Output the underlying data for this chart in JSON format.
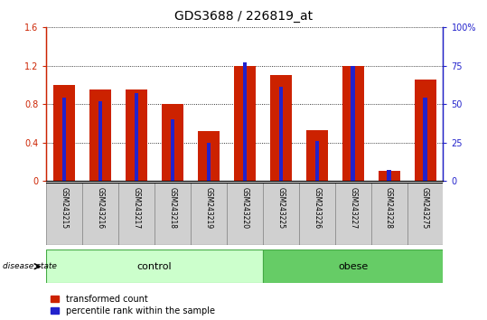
{
  "title": "GDS3688 / 226819_at",
  "samples": [
    "GSM243215",
    "GSM243216",
    "GSM243217",
    "GSM243218",
    "GSM243219",
    "GSM243220",
    "GSM243225",
    "GSM243226",
    "GSM243227",
    "GSM243228",
    "GSM243275"
  ],
  "red_values": [
    1.0,
    0.95,
    0.95,
    0.8,
    0.52,
    1.2,
    1.1,
    0.53,
    1.2,
    0.1,
    1.05
  ],
  "blue_values": [
    54.0,
    52.0,
    57.0,
    40.0,
    25.0,
    77.0,
    61.0,
    26.0,
    75.0,
    7.0,
    54.0
  ],
  "red_color": "#cc2200",
  "blue_color": "#2222cc",
  "ylim_left": [
    0,
    1.6
  ],
  "ylim_right": [
    0,
    100
  ],
  "yticks_left": [
    0,
    0.4,
    0.8,
    1.2,
    1.6
  ],
  "ytick_labels_left": [
    "0",
    "0.4",
    "0.8",
    "1.2",
    "1.6"
  ],
  "yticks_right": [
    0,
    25,
    50,
    75,
    100
  ],
  "ytick_labels_right": [
    "0",
    "25",
    "50",
    "75",
    "100%"
  ],
  "groups": [
    {
      "label": "control",
      "start": 0,
      "end": 5,
      "color": "#ccffcc",
      "border": "#44aa44"
    },
    {
      "label": "obese",
      "start": 6,
      "end": 10,
      "color": "#66cc66",
      "border": "#44aa44"
    }
  ],
  "disease_state_label": "disease state",
  "legend_red": "transformed count",
  "legend_blue": "percentile rank within the sample",
  "bar_width": 0.6,
  "cell_color": "#d0d0d0",
  "background_color": "#ffffff",
  "title_fontsize": 10,
  "tick_fontsize": 7,
  "group_fontsize": 8,
  "legend_fontsize": 7,
  "sample_fontsize": 5.5
}
